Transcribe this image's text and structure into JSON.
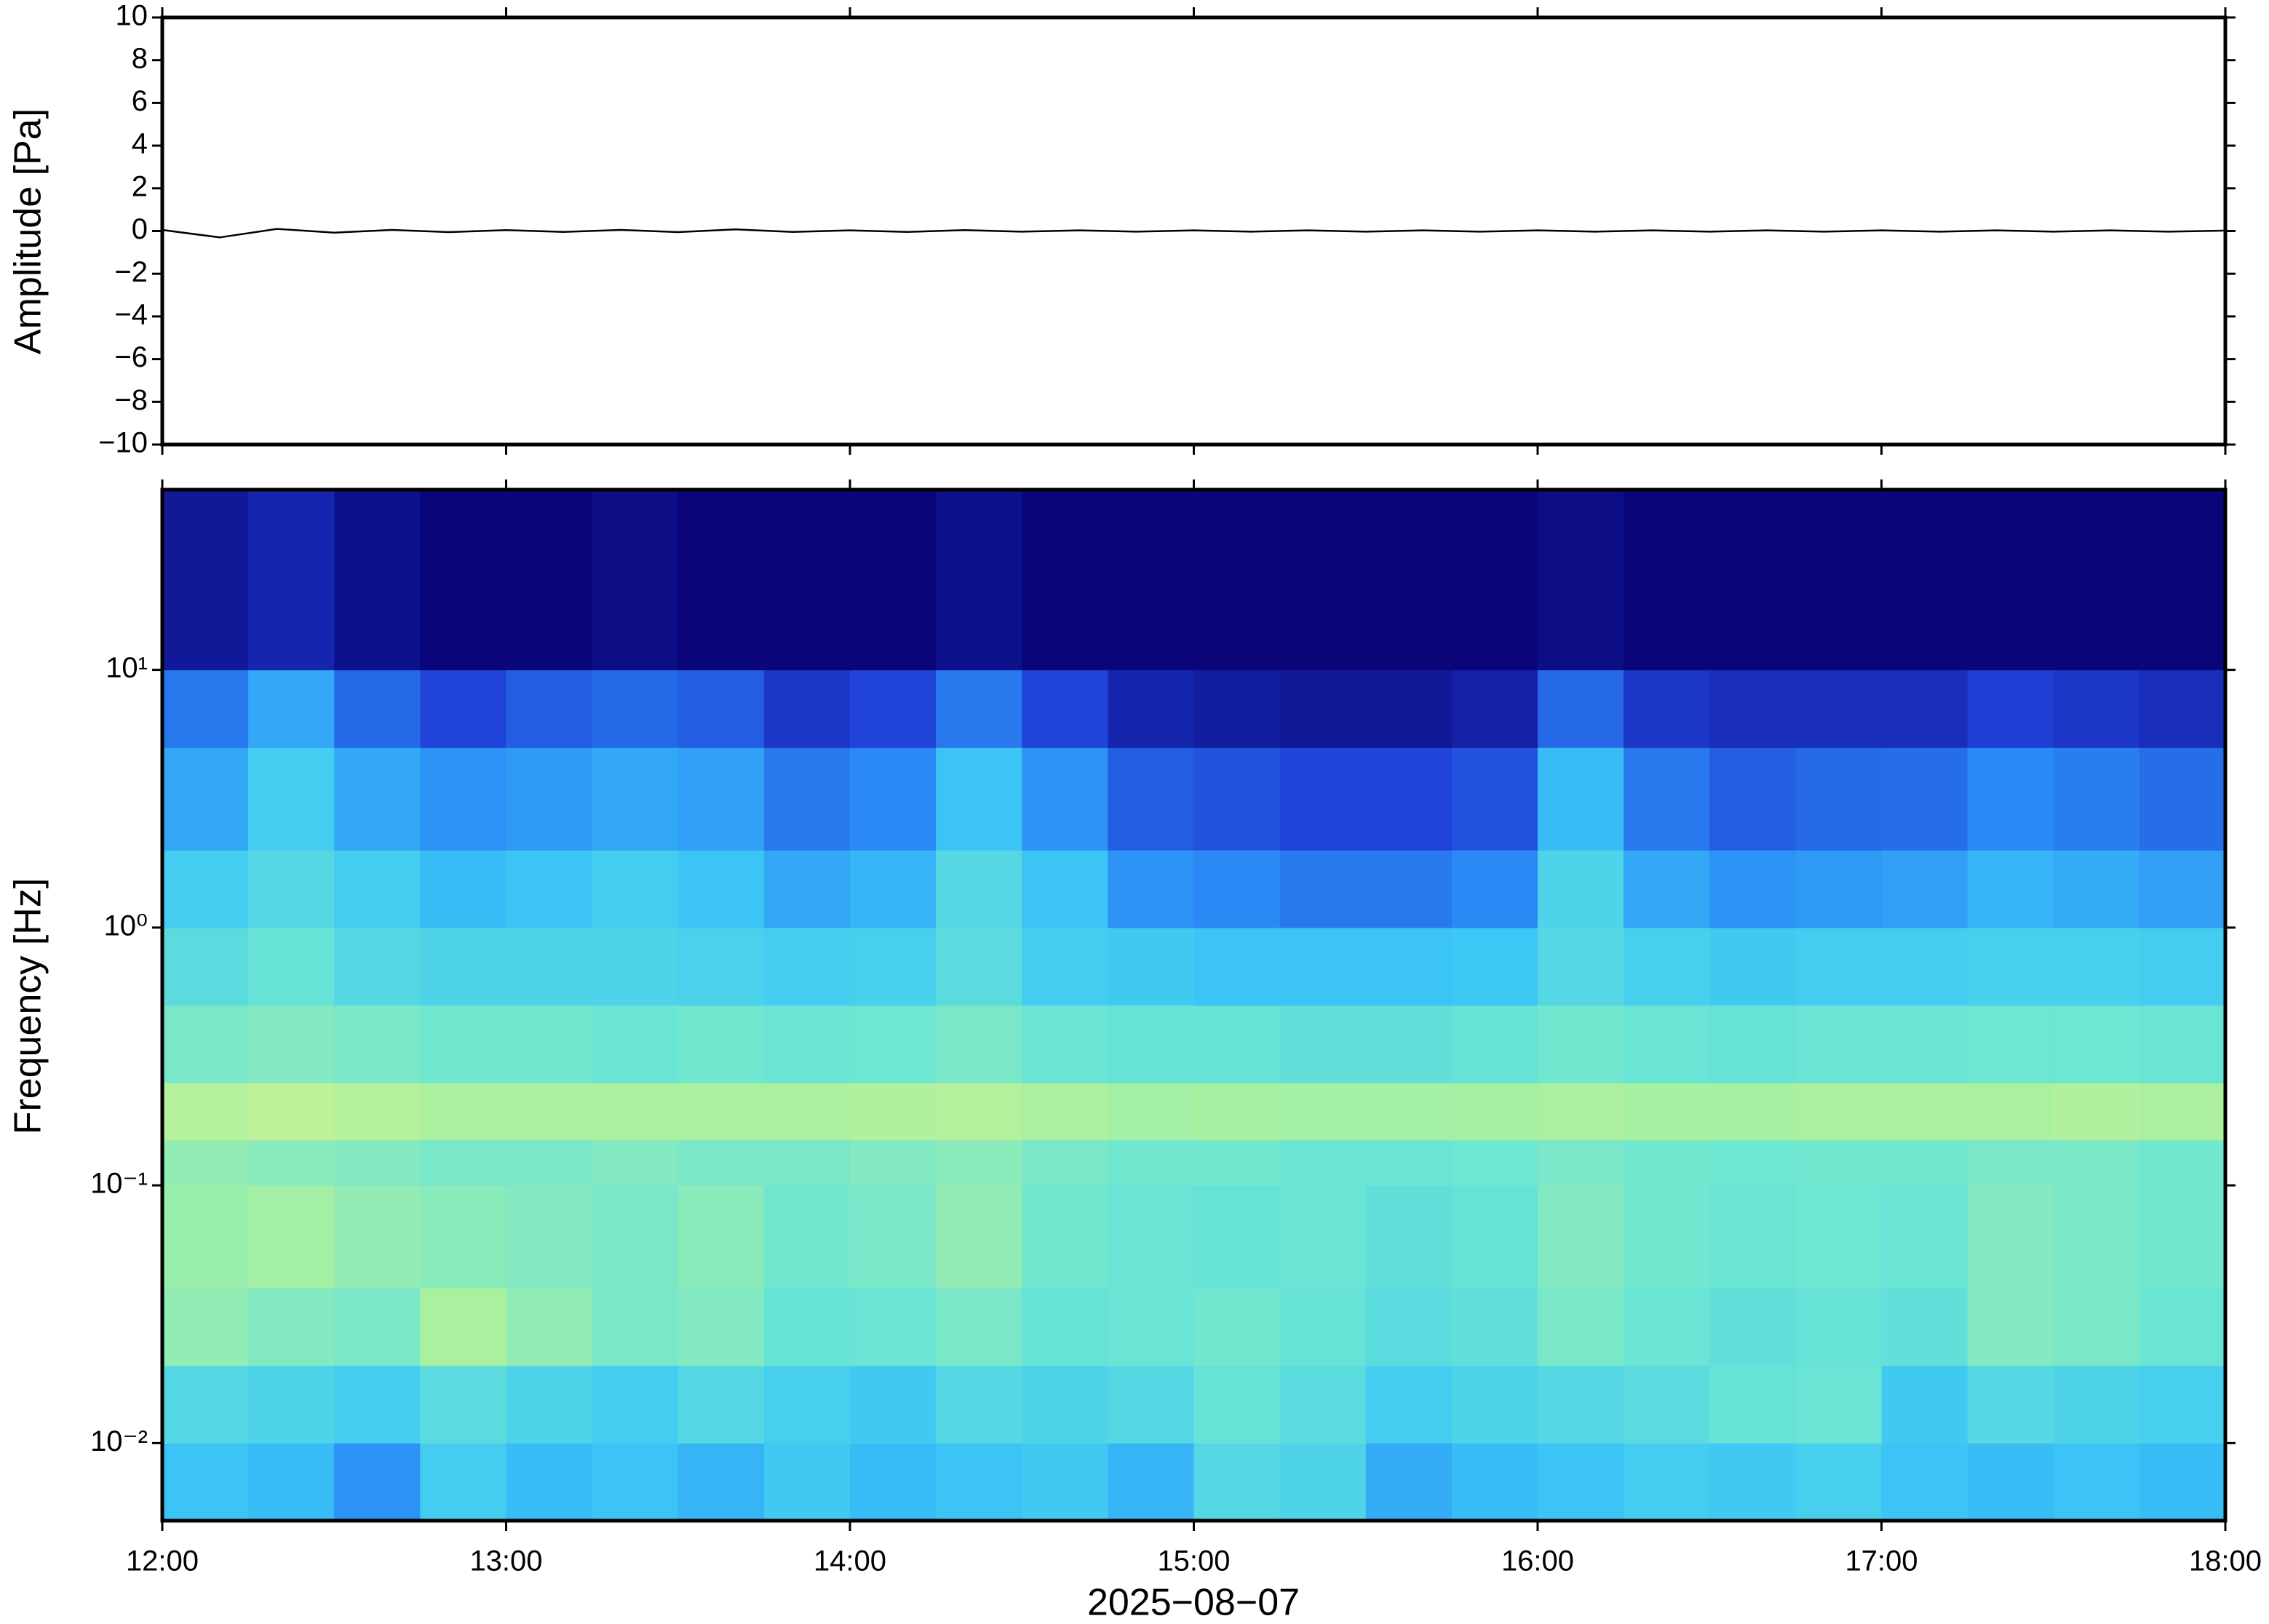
{
  "chart_data": [
    {
      "type": "line",
      "ylabel": "Amplitude [Pa]",
      "color": "#000000",
      "xlim": [
        "12:00",
        "18:00"
      ],
      "ylim": [
        -10,
        10
      ],
      "yticks": [
        {
          "value": -10,
          "label": "−10"
        },
        {
          "value": -8,
          "label": "−8"
        },
        {
          "value": -6,
          "label": "−6"
        },
        {
          "value": -4,
          "label": "−4"
        },
        {
          "value": -2,
          "label": "−2"
        },
        0,
        2,
        4,
        6,
        8,
        10
      ],
      "x": [
        "12:00",
        "12:10",
        "12:20",
        "12:30",
        "12:40",
        "12:50",
        "13:00",
        "13:10",
        "13:20",
        "13:30",
        "13:40",
        "13:50",
        "14:00",
        "14:10",
        "14:20",
        "14:30",
        "14:40",
        "14:50",
        "15:00",
        "15:10",
        "15:20",
        "15:30",
        "15:40",
        "15:50",
        "16:00",
        "16:10",
        "16:20",
        "16:30",
        "16:40",
        "16:50",
        "17:00",
        "17:10",
        "17:20",
        "17:30",
        "17:40",
        "17:50",
        "18:00"
      ],
      "values": [
        0.05,
        -0.3,
        0.1,
        -0.08,
        0.05,
        -0.05,
        0.04,
        -0.04,
        0.05,
        -0.05,
        0.08,
        -0.04,
        0.03,
        -0.04,
        0.04,
        -0.03,
        0.03,
        -0.03,
        0.03,
        -0.03,
        0.03,
        -0.03,
        0.03,
        -0.03,
        0.03,
        -0.03,
        0.03,
        -0.03,
        0.03,
        -0.03,
        0.03,
        -0.03,
        0.03,
        -0.03,
        0.03,
        -0.03,
        0.02
      ]
    },
    {
      "type": "heatmap",
      "ylabel": "Frequency [Hz]",
      "xlabel": "2025−08−07",
      "yscale": "log",
      "xlim": [
        "12:00",
        "18:00"
      ],
      "xticks": [
        "12:00",
        "13:00",
        "14:00",
        "15:00",
        "16:00",
        "17:00",
        "18:00"
      ],
      "ylim": [
        0.005,
        50
      ],
      "yticks": [
        {
          "value": 0.01,
          "label": "10⁻²"
        },
        {
          "value": 0.1,
          "label": "10⁻¹"
        },
        {
          "value": 1,
          "label": "10⁰"
        },
        {
          "value": 10,
          "label": "10¹"
        }
      ],
      "colormap": [
        "#0a0578",
        "#1f3fd6",
        "#2a8cf5",
        "#3cc8f5",
        "#6ee6d2",
        "#a8f0a0",
        "#f0f08c",
        "#f5a050"
      ],
      "zlim": [
        0,
        1
      ],
      "x": [
        "12:00",
        "12:15",
        "12:30",
        "12:45",
        "13:00",
        "13:15",
        "13:30",
        "13:45",
        "14:00",
        "14:15",
        "14:30",
        "14:45",
        "15:00",
        "15:15",
        "15:30",
        "15:45",
        "16:00",
        "16:15",
        "16:30",
        "16:45",
        "17:00",
        "17:15",
        "17:30",
        "17:45"
      ],
      "y_edges": [
        0.005,
        0.01,
        0.02,
        0.04,
        0.1,
        0.15,
        0.25,
        0.5,
        1,
        2,
        5,
        10,
        50
      ],
      "z": [
        [
          0.42,
          0.5,
          0.66,
          0.68,
          0.66,
          0.74,
          0.6,
          0.52,
          0.45,
          0.35,
          0.25,
          0.05
        ],
        [
          0.4,
          0.48,
          0.62,
          0.7,
          0.64,
          0.76,
          0.62,
          0.55,
          0.5,
          0.45,
          0.35,
          0.08
        ],
        [
          0.3,
          0.45,
          0.6,
          0.66,
          0.62,
          0.74,
          0.6,
          0.5,
          0.45,
          0.35,
          0.22,
          0.03
        ],
        [
          0.45,
          0.52,
          0.72,
          0.64,
          0.6,
          0.72,
          0.58,
          0.48,
          0.4,
          0.3,
          0.15,
          0
        ],
        [
          0.4,
          0.48,
          0.66,
          0.62,
          0.6,
          0.72,
          0.58,
          0.48,
          0.42,
          0.32,
          0.2,
          0
        ],
        [
          0.42,
          0.45,
          0.6,
          0.6,
          0.62,
          0.72,
          0.56,
          0.48,
          0.45,
          0.35,
          0.22,
          0.02
        ],
        [
          0.38,
          0.5,
          0.62,
          0.64,
          0.6,
          0.72,
          0.58,
          0.47,
          0.42,
          0.33,
          0.2,
          0
        ],
        [
          0.44,
          0.46,
          0.55,
          0.58,
          0.6,
          0.72,
          0.56,
          0.45,
          0.35,
          0.25,
          0.12,
          0
        ],
        [
          0.4,
          0.44,
          0.56,
          0.6,
          0.62,
          0.73,
          0.57,
          0.46,
          0.38,
          0.28,
          0.15,
          0
        ],
        [
          0.42,
          0.5,
          0.6,
          0.66,
          0.64,
          0.74,
          0.6,
          0.52,
          0.5,
          0.42,
          0.25,
          0.03
        ],
        [
          0.44,
          0.48,
          0.55,
          0.58,
          0.6,
          0.72,
          0.56,
          0.45,
          0.42,
          0.3,
          0.15,
          0
        ],
        [
          0.38,
          0.5,
          0.56,
          0.56,
          0.58,
          0.7,
          0.55,
          0.44,
          0.3,
          0.2,
          0.08,
          0
        ],
        [
          0.5,
          0.55,
          0.58,
          0.55,
          0.58,
          0.71,
          0.55,
          0.42,
          0.28,
          0.18,
          0.06,
          0
        ],
        [
          0.48,
          0.52,
          0.55,
          0.56,
          0.56,
          0.7,
          0.54,
          0.42,
          0.25,
          0.15,
          0.05,
          0
        ],
        [
          0.36,
          0.45,
          0.52,
          0.54,
          0.56,
          0.7,
          0.54,
          0.42,
          0.25,
          0.15,
          0.05,
          0
        ],
        [
          0.4,
          0.48,
          0.54,
          0.55,
          0.57,
          0.71,
          0.55,
          0.43,
          0.28,
          0.18,
          0.07,
          0
        ],
        [
          0.42,
          0.5,
          0.6,
          0.62,
          0.6,
          0.72,
          0.58,
          0.5,
          0.48,
          0.4,
          0.22,
          0.02
        ],
        [
          0.45,
          0.52,
          0.56,
          0.58,
          0.58,
          0.71,
          0.56,
          0.46,
          0.35,
          0.25,
          0.12,
          0
        ],
        [
          0.44,
          0.55,
          0.54,
          0.56,
          0.57,
          0.71,
          0.55,
          0.44,
          0.3,
          0.2,
          0.1,
          0
        ],
        [
          0.46,
          0.56,
          0.55,
          0.57,
          0.58,
          0.72,
          0.56,
          0.45,
          0.32,
          0.22,
          0.1,
          0
        ],
        [
          0.42,
          0.44,
          0.54,
          0.56,
          0.58,
          0.72,
          0.56,
          0.45,
          0.33,
          0.23,
          0.1,
          0
        ],
        [
          0.4,
          0.5,
          0.62,
          0.62,
          0.6,
          0.72,
          0.57,
          0.46,
          0.38,
          0.28,
          0.14,
          0
        ],
        [
          0.42,
          0.48,
          0.6,
          0.6,
          0.6,
          0.73,
          0.57,
          0.46,
          0.36,
          0.26,
          0.12,
          0
        ],
        [
          0.4,
          0.46,
          0.56,
          0.58,
          0.58,
          0.72,
          0.56,
          0.45,
          0.33,
          0.23,
          0.1,
          0
        ]
      ]
    }
  ]
}
